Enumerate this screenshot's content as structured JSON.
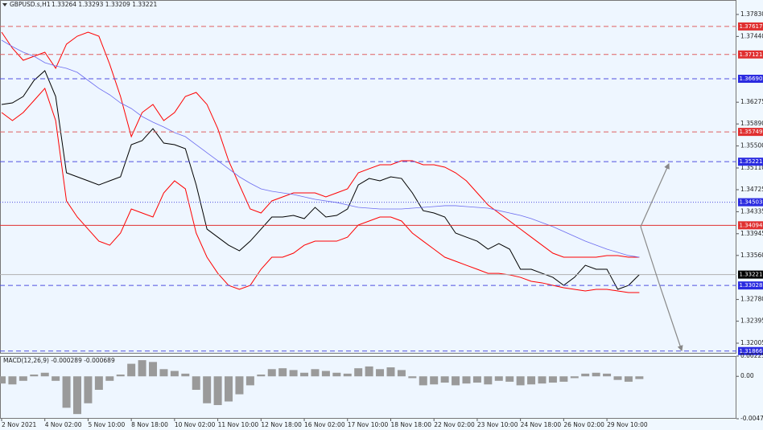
{
  "chart_data": [
    {
      "type": "line",
      "title": "GBPUSD.s,H1",
      "subtitle": "1.33264 1.33293 1.33209 1.33221",
      "ylim": [
        1.3182,
        1.38086
      ],
      "yticks": [
        {
          "value": 1.3783,
          "label": "1.37830"
        },
        {
          "value": 1.3744,
          "label": "1.37440"
        },
        1.36275,
        {
          "value": 1.3589,
          "label": "1.35890"
        },
        {
          "value": 1.355,
          "label": "1.35500"
        },
        {
          "value": 1.3511,
          "label": "1.35110"
        },
        1.34725,
        1.34335,
        1.33945,
        {
          "value": 1.3356,
          "label": "1.33560"
        },
        {
          "value": 1.3278,
          "label": "1.32780"
        },
        1.32395,
        1.32005
      ],
      "series": [
        {
          "color": "#000000",
          "values": [
            1.36235,
            1.36263,
            1.36377,
            1.36662,
            1.36833,
            1.36377,
            1.35024,
            1.34953,
            1.34882,
            1.3481,
            1.34882,
            1.34953,
            1.35522,
            1.35594,
            1.35807,
            1.35551,
            1.35522,
            1.35451,
            1.3481,
            1.34027,
            1.33884,
            1.33742,
            1.33642,
            1.33813,
            1.34027,
            1.34241,
            1.34241,
            1.34269,
            1.34212,
            1.34411,
            1.34241,
            1.34269,
            1.34383,
            1.3481,
            1.34924,
            1.34882,
            1.34953,
            1.34924,
            1.34668,
            1.34354,
            1.34312,
            1.34241,
            1.33956,
            1.33884,
            1.33813,
            1.33671,
            1.3377,
            1.33671,
            1.33315,
            1.33315,
            1.33243,
            1.33172,
            1.3303,
            1.33172,
            1.33386,
            1.33315,
            1.33315,
            1.32959,
            1.3303,
            1.33221
          ]
        },
        {
          "color": "#ff0000",
          "values": [
            1.37516,
            1.37232,
            1.37018,
            1.37089,
            1.3716,
            1.36876,
            1.37303,
            1.37445,
            1.37516,
            1.37445,
            1.36947,
            1.36377,
            1.35665,
            1.36092,
            1.36235,
            1.3595,
            1.36092,
            1.36377,
            1.36448,
            1.36235,
            1.35807,
            1.35238,
            1.3481,
            1.34383,
            1.34312,
            1.34526,
            1.34597,
            1.34668,
            1.34668,
            1.34668,
            1.34597,
            1.34668,
            1.3474,
            1.35024,
            1.35096,
            1.35167,
            1.35167,
            1.35238,
            1.35238,
            1.35167,
            1.35167,
            1.35124,
            1.35024,
            1.34882,
            1.34668,
            1.34455,
            1.34312,
            1.3417,
            1.34027,
            1.33884,
            1.33742,
            1.336,
            1.33529,
            1.33529,
            1.33529,
            1.33529,
            1.33558,
            1.33558,
            1.33529,
            1.33529
          ]
        },
        {
          "color": "#ff0000",
          "values": [
            1.36092,
            1.3595,
            1.36092,
            1.36306,
            1.3652,
            1.3595,
            1.34526,
            1.34241,
            1.34027,
            1.33813,
            1.33742,
            1.33956,
            1.34383,
            1.34312,
            1.34241,
            1.34668,
            1.34882,
            1.3474,
            1.33956,
            1.33529,
            1.33243,
            1.3303,
            1.32959,
            1.3303,
            1.33315,
            1.33529,
            1.33529,
            1.336,
            1.33742,
            1.33813,
            1.33813,
            1.33813,
            1.33884,
            1.34099,
            1.3417,
            1.34241,
            1.34241,
            1.3417,
            1.33956,
            1.33813,
            1.33671,
            1.33529,
            1.33458,
            1.33386,
            1.33315,
            1.33243,
            1.33243,
            1.33216,
            1.33172,
            1.33102,
            1.33074,
            1.3303,
            1.32988,
            1.32959,
            1.32931,
            1.32959,
            1.32959,
            1.32931,
            1.32903,
            1.32903
          ]
        },
        {
          "color": "#6b6bf0",
          "values": [
            1.37374,
            1.3726,
            1.3716,
            1.37089,
            1.36975,
            1.36918,
            1.36876,
            1.36804,
            1.36662,
            1.3652,
            1.36406,
            1.36263,
            1.36164,
            1.36021,
            1.35922,
            1.35836,
            1.35736,
            1.35665,
            1.35522,
            1.3538,
            1.35238,
            1.35096,
            1.34953,
            1.34839,
            1.3474,
            1.34697,
            1.34668,
            1.3464,
            1.34597,
            1.34554,
            1.34526,
            1.34498,
            1.34455,
            1.34412,
            1.34398,
            1.34383,
            1.34383,
            1.34383,
            1.34398,
            1.34412,
            1.34426,
            1.34441,
            1.34441,
            1.34426,
            1.34412,
            1.34398,
            1.34354,
            1.34312,
            1.3427,
            1.34212,
            1.34142,
            1.3407,
            1.33985,
            1.33899,
            1.33813,
            1.33742,
            1.33671,
            1.33615,
            1.33558,
            1.33529
          ]
        }
      ],
      "levels": [
        {
          "value": 1.37617,
          "color": "#e03030",
          "line_color": "#e06060",
          "style": "dashed"
        },
        {
          "value": 1.37121,
          "color": "#e03030",
          "line_color": "#e06060",
          "style": "dashed"
        },
        {
          "value": 1.3669,
          "label": "1.36690",
          "color": "#2a2ae0",
          "line_color": "#5050e0",
          "style": "dashed"
        },
        {
          "value": 1.35749,
          "color": "#e03030",
          "line_color": "#e06060",
          "style": "dashed"
        },
        {
          "value": 1.35221,
          "color": "#2a2ae0",
          "line_color": "#5050e0",
          "style": "dashed"
        },
        {
          "value": 1.34503,
          "color": "#2a2ae0",
          "line_color": "#5050e0",
          "style": "dotted"
        },
        {
          "value": 1.34094,
          "color": "#e03030",
          "line_color": "#e03030",
          "style": "solid"
        },
        {
          "value": 1.33221,
          "color": "#000000",
          "line_color": "#b0b0b0",
          "style": "solid"
        },
        {
          "value": 1.33028,
          "color": "#2a2ae0",
          "line_color": "#5050e0",
          "style": "dashed"
        },
        {
          "value": 1.31866,
          "color": "#2a2ae0",
          "line_color": "#5050e0",
          "style": "dashed"
        }
      ]
    },
    {
      "type": "bar",
      "title": "MACD(12,26,9) -0.000289 -0.000689",
      "categories": [
        "2 Nov 2021",
        null,
        null,
        null,
        "4 Nov 02:00",
        null,
        null,
        null,
        "5 Nov 10:00",
        null,
        null,
        null,
        "8 Nov 18:00",
        null,
        null,
        null,
        "10 Nov 02:00",
        null,
        null,
        null,
        "11 Nov 10:00",
        null,
        null,
        null,
        "12 Nov 18:00",
        null,
        null,
        null,
        "16 Nov 02:00",
        null,
        null,
        null,
        "17 Nov 10:00",
        null,
        null,
        null,
        "18 Nov 18:00",
        null,
        null,
        null,
        "22 Nov 02:00",
        null,
        null,
        null,
        "23 Nov 10:00",
        null,
        null,
        null,
        "24 Nov 18:00",
        null,
        null,
        null,
        "26 Nov 02:00",
        null,
        null,
        null,
        "29 Nov 10:00",
        null,
        null,
        null
      ],
      "ylim": [
        -0.004723,
        0.002258
      ],
      "yticks": [
        0.002258,
        {
          "value": 0,
          "label": "0.00"
        },
        -0.004723
      ],
      "color": "#9a9a9a",
      "values": [
        -0.0008,
        -0.0009,
        -0.0005,
        0.0002,
        0.0004,
        -0.0005,
        -0.0035,
        -0.0042,
        -0.003,
        -0.0015,
        -0.0005,
        0.0002,
        0.0014,
        0.0018,
        0.0016,
        0.0008,
        0.0006,
        0.0003,
        -0.0015,
        -0.003,
        -0.0032,
        -0.0028,
        -0.002,
        -0.001,
        0.0002,
        0.0008,
        0.0009,
        0.0007,
        0.0004,
        0.0008,
        0.0006,
        0.0004,
        0.0003,
        0.0009,
        0.0011,
        0.0008,
        0.001,
        0.0007,
        -0.0002,
        -0.001,
        -0.0009,
        -0.0007,
        -0.001,
        -0.0008,
        -0.0007,
        -0.0009,
        -0.0005,
        -0.0006,
        -0.001,
        -0.0009,
        -0.0008,
        -0.0007,
        -0.0006,
        -0.0002,
        0.0003,
        0.0004,
        0.0003,
        -0.0004,
        -0.0006,
        -0.0003
      ]
    }
  ]
}
